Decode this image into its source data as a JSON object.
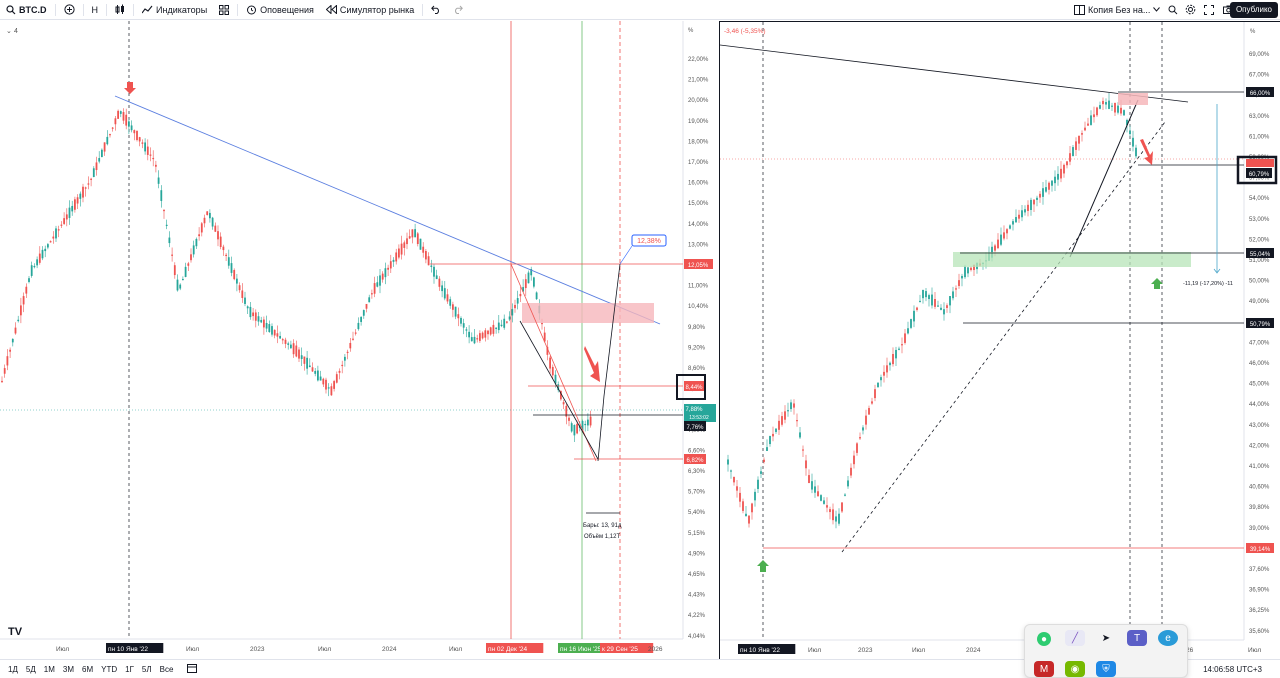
{
  "toolbar": {
    "symbol": "BTC.D",
    "interval": "Н",
    "indicators": "Индикаторы",
    "alerts": "Оповещения",
    "replay": "Симулятор рынка",
    "layout_name": "Копия Без на...",
    "publish": "Опублико"
  },
  "left_chart": {
    "legend_num": "4",
    "price_axis_unit": "%",
    "price_ticks": [
      "22,00%",
      "21,00%",
      "20,00%",
      "19,00%",
      "18,00%",
      "17,00%",
      "16,00%",
      "15,00%",
      "14,00%",
      "13,00%",
      "12,00%",
      "11,00%",
      "10,40%",
      "9,80%",
      "9,20%",
      "8,60%",
      "8,00%",
      "7,40%",
      "7,00%",
      "6,60%",
      "6,30%",
      "5,70%",
      "5,40%",
      "5,15%",
      "4,90%",
      "4,65%",
      "4,43%",
      "4,22%",
      "4,04%"
    ],
    "price_labels": {
      "p1": "12,38%",
      "p2": "12,05%",
      "p3": "8,44%",
      "p4": "7,88%",
      "p4_sub": "13:53:02",
      "p5": "7,76%",
      "p6": "6,82%"
    },
    "bars_text": "Бары: 13, 91д",
    "volume_text": "Объём 1,12Т",
    "time_labels": [
      "Июл",
      "пн 10 Янв '22",
      "Июл",
      "2023",
      "Июл",
      "2024",
      "Июл",
      "пн 02 Дек '24",
      "пн 16 Июн '25",
      "к 29 Сен '25",
      "2026"
    ]
  },
  "right_chart": {
    "top_info": "-3,46 (-5,35%)",
    "price_axis_unit": "%",
    "price_ticks": [
      "69,00%",
      "67,00%",
      "65,00%",
      "63,00%",
      "61,00%",
      "59,00%",
      "57,00%",
      "54,00%",
      "53,00%",
      "52,00%",
      "51,00%",
      "50,00%",
      "49,00%",
      "48,00%",
      "47,00%",
      "46,00%",
      "45,00%",
      "44,00%",
      "43,00%",
      "42,00%",
      "41,00%",
      "40,60%",
      "39,80%",
      "39,00%",
      "38,30%",
      "37,60%",
      "36,90%",
      "36,25%",
      "35,60%"
    ],
    "price_labels": {
      "p1": "66,00%",
      "p2": "60,79%",
      "p3": "55,04%",
      "p4": "50,79%",
      "p5": "39,14%"
    },
    "measure_text": "-11,19 (-17,20%) -11",
    "time_labels": [
      "пн 10 Янв '22",
      "Июл",
      "2023",
      "Июл",
      "2024",
      "26",
      "Июл"
    ]
  },
  "bottom_bar": {
    "ranges": [
      "1Д",
      "5Д",
      "1М",
      "3М",
      "6М",
      "YTD",
      "1Г",
      "5Л",
      "Все"
    ],
    "clock": "14:06:58 UTC+3"
  },
  "colors": {
    "up": "#26a69a",
    "down": "#ef5350",
    "trend_blue": "#5b7fe0",
    "zone_red": "#f6b7bb",
    "zone_green": "#b7e4b8"
  },
  "taskbar_icons": [
    "chat-app-icon",
    "pen-icon",
    "telegram-icon",
    "teams-icon",
    "browser-icon",
    "mail-icon",
    "nvidia-icon",
    "shield-icon"
  ]
}
